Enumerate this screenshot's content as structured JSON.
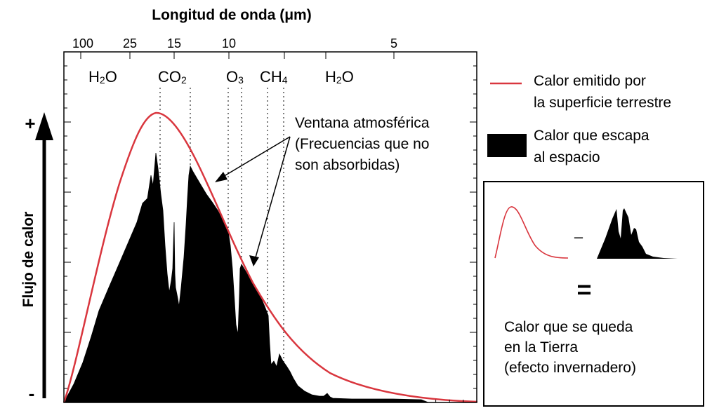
{
  "title": "Longitud de onda (μm)",
  "top_axis_ticks": [
    "100",
    "25",
    "15",
    "10",
    "5"
  ],
  "gases": [
    {
      "main": "H",
      "sub": "2",
      "tail": "O"
    },
    {
      "main": "CO",
      "sub": "2",
      "tail": ""
    },
    {
      "main": "O",
      "sub": "3",
      "tail": ""
    },
    {
      "main": "CH",
      "sub": "4",
      "tail": ""
    },
    {
      "main": "H",
      "sub": "2",
      "tail": "O"
    }
  ],
  "y_axis": {
    "label": "Flujo de calor",
    "plus": "+",
    "minus": "-"
  },
  "annotation": [
    "Ventana atmosférica",
    "(Frecuencias que no",
    "son absorbidas)"
  ],
  "legend": {
    "emitted": [
      "Calor emitido por",
      "la superficie terrestre"
    ],
    "escaped": [
      "Calor que escapa",
      "al espacio"
    ]
  },
  "inset": {
    "minus": "–",
    "equals": "=",
    "result": [
      "Calor que se queda",
      "en la Tierra",
      "(efecto invernadero)"
    ]
  },
  "colors": {
    "emitted_curve": "#d9363e",
    "escaped_fill": "#000000"
  }
}
